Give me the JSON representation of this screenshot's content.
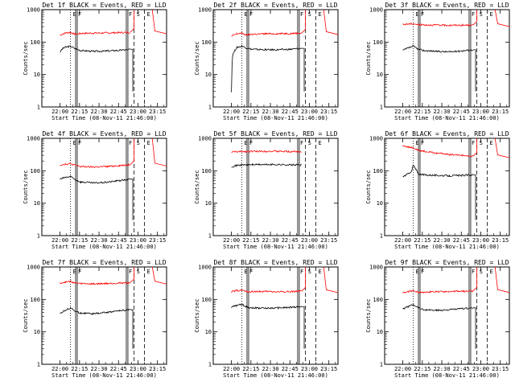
{
  "figure": {
    "xtick_labels": [
      "22:00",
      "22:15",
      "22:30",
      "22:45",
      "23:00",
      "23:15"
    ],
    "ytick_labels": [
      "1",
      "10",
      "100",
      "1000"
    ],
    "ylabel": "Counts/sec",
    "xlabel": "Start Time (08-Nov-11 21:46:00)",
    "colors": {
      "events": "#000000",
      "lld": "#ff0000"
    }
  },
  "chart_data": [
    {
      "type": "line",
      "title": "Det 1f BLACK = Events, RED = LLD",
      "ylim": [
        1,
        1000
      ],
      "yscale": "log",
      "xlim_min": [
        0,
        96
      ],
      "start_min": 14,
      "end_min": 79,
      "dip_at_min": 70,
      "dip_to": 3,
      "events": [
        [
          14,
          50
        ],
        [
          16,
          62
        ],
        [
          18,
          70
        ],
        [
          22,
          74
        ],
        [
          26,
          62
        ],
        [
          30,
          55
        ],
        [
          40,
          52
        ],
        [
          50,
          53
        ],
        [
          60,
          56
        ],
        [
          65,
          58
        ],
        [
          68,
          60
        ]
      ],
      "lld": [
        [
          14,
          165
        ],
        [
          18,
          190
        ],
        [
          22,
          200
        ],
        [
          25,
          175
        ],
        [
          30,
          185
        ],
        [
          40,
          190
        ],
        [
          50,
          192
        ],
        [
          60,
          196
        ],
        [
          68,
          200
        ]
      ],
      "markers": [
        {
          "min": 22,
          "label": "E"
        },
        {
          "min": 26,
          "label": "F"
        },
        {
          "min": 65,
          "label": "F"
        },
        {
          "min": 71,
          "label": "S"
        },
        {
          "min": 79,
          "label": "E"
        }
      ]
    },
    {
      "type": "line",
      "title": "Det 2f BLACK = Events, RED = LLD",
      "ylim": [
        1,
        1000
      ],
      "yscale": "log",
      "start_min": 14,
      "end_min": 79,
      "dip_at_min": 70,
      "dip_to": 3,
      "events": [
        [
          14,
          3
        ],
        [
          15,
          40
        ],
        [
          18,
          68
        ],
        [
          22,
          75
        ],
        [
          26,
          65
        ],
        [
          30,
          60
        ],
        [
          40,
          58
        ],
        [
          50,
          58
        ],
        [
          60,
          60
        ],
        [
          68,
          64
        ]
      ],
      "lld": [
        [
          14,
          150
        ],
        [
          18,
          180
        ],
        [
          22,
          190
        ],
        [
          25,
          165
        ],
        [
          30,
          175
        ],
        [
          40,
          180
        ],
        [
          50,
          182
        ],
        [
          60,
          185
        ],
        [
          68,
          190
        ]
      ],
      "markers": [
        {
          "min": 22,
          "label": "E"
        },
        {
          "min": 26,
          "label": "F"
        },
        {
          "min": 65,
          "label": "F"
        },
        {
          "min": 71,
          "label": "S"
        },
        {
          "min": 79,
          "label": "E"
        }
      ]
    },
    {
      "type": "line",
      "title": "Det 3f BLACK = Events, RED = LLD",
      "ylim": [
        1,
        1000
      ],
      "yscale": "log",
      "start_min": 14,
      "end_min": 79,
      "dip_at_min": 70,
      "dip_to": 3,
      "events": [
        [
          14,
          55
        ],
        [
          18,
          65
        ],
        [
          22,
          75
        ],
        [
          26,
          60
        ],
        [
          30,
          55
        ],
        [
          40,
          52
        ],
        [
          50,
          50
        ],
        [
          60,
          54
        ],
        [
          68,
          58
        ]
      ],
      "lld": [
        [
          14,
          350
        ],
        [
          18,
          360
        ],
        [
          22,
          370
        ],
        [
          26,
          345
        ],
        [
          30,
          340
        ],
        [
          40,
          335
        ],
        [
          50,
          330
        ],
        [
          60,
          332
        ],
        [
          68,
          335
        ]
      ],
      "markers": [
        {
          "min": 22,
          "label": "E"
        },
        {
          "min": 26,
          "label": "F"
        },
        {
          "min": 65,
          "label": "F"
        },
        {
          "min": 71,
          "label": "S"
        },
        {
          "min": 79,
          "label": "E"
        }
      ]
    },
    {
      "type": "line",
      "title": "Det 4f BLACK = Events, RED = LLD",
      "ylim": [
        1,
        1000
      ],
      "yscale": "log",
      "start_min": 14,
      "end_min": 79,
      "dip_at_min": 70,
      "dip_to": 3,
      "events": [
        [
          14,
          55
        ],
        [
          18,
          62
        ],
        [
          22,
          66
        ],
        [
          26,
          52
        ],
        [
          30,
          45
        ],
        [
          40,
          42
        ],
        [
          50,
          44
        ],
        [
          60,
          50
        ],
        [
          68,
          55
        ]
      ],
      "lld": [
        [
          14,
          150
        ],
        [
          18,
          160
        ],
        [
          22,
          165
        ],
        [
          26,
          145
        ],
        [
          30,
          135
        ],
        [
          40,
          130
        ],
        [
          50,
          135
        ],
        [
          60,
          145
        ],
        [
          68,
          155
        ]
      ],
      "markers": [
        {
          "min": 22,
          "label": "E"
        },
        {
          "min": 26,
          "label": "F"
        },
        {
          "min": 65,
          "label": "F"
        },
        {
          "min": 71,
          "label": "S"
        },
        {
          "min": 79,
          "label": "E"
        }
      ]
    },
    {
      "type": "line",
      "title": "Det 5f BLACK = Events, RED = LLD",
      "ylim": [
        1,
        1000
      ],
      "yscale": "log",
      "start_min": 14,
      "end_min": 79,
      "dip_at_min": null,
      "dip_to": null,
      "events": [
        [
          14,
          135
        ],
        [
          20,
          150
        ],
        [
          30,
          155
        ],
        [
          40,
          155
        ],
        [
          50,
          155
        ],
        [
          60,
          152
        ],
        [
          68,
          150
        ]
      ],
      "lld": [
        [
          14,
          380
        ],
        [
          20,
          390
        ],
        [
          30,
          395
        ],
        [
          40,
          400
        ],
        [
          50,
          395
        ],
        [
          60,
          390
        ],
        [
          68,
          395
        ]
      ],
      "markers": [
        {
          "min": 22,
          "label": "E"
        },
        {
          "min": 26,
          "label": "F"
        },
        {
          "min": 65,
          "label": "F"
        },
        {
          "min": 71,
          "label": "S"
        },
        {
          "min": 79,
          "label": "E"
        }
      ]
    },
    {
      "type": "line",
      "title": "Det 6f BLACK = Events, RED = LLD",
      "ylim": [
        1,
        1000
      ],
      "yscale": "log",
      "start_min": 14,
      "end_min": 79,
      "dip_at_min": 70,
      "dip_to": 3,
      "events": [
        [
          14,
          65
        ],
        [
          18,
          80
        ],
        [
          21,
          100
        ],
        [
          22,
          150
        ],
        [
          24,
          110
        ],
        [
          26,
          80
        ],
        [
          30,
          75
        ],
        [
          40,
          72
        ],
        [
          50,
          70
        ],
        [
          60,
          72
        ],
        [
          68,
          75
        ]
      ],
      "lld": [
        [
          14,
          600
        ],
        [
          18,
          550
        ],
        [
          22,
          500
        ],
        [
          26,
          420
        ],
        [
          30,
          400
        ],
        [
          40,
          350
        ],
        [
          50,
          320
        ],
        [
          60,
          300
        ],
        [
          68,
          280
        ]
      ],
      "markers": [
        {
          "min": 22,
          "label": "E"
        },
        {
          "min": 26,
          "label": "F"
        },
        {
          "min": 65,
          "label": "F"
        },
        {
          "min": 71,
          "label": "S"
        },
        {
          "min": 79,
          "label": "E"
        }
      ]
    },
    {
      "type": "line",
      "title": "Det 7f BLACK = Events, RED = LLD",
      "ylim": [
        1,
        1000
      ],
      "yscale": "log",
      "start_min": 14,
      "end_min": 79,
      "dip_at_min": 70,
      "dip_to": 3,
      "events": [
        [
          14,
          38
        ],
        [
          18,
          45
        ],
        [
          22,
          55
        ],
        [
          26,
          42
        ],
        [
          30,
          38
        ],
        [
          40,
          36
        ],
        [
          50,
          40
        ],
        [
          60,
          45
        ],
        [
          68,
          48
        ]
      ],
      "lld": [
        [
          14,
          320
        ],
        [
          18,
          340
        ],
        [
          22,
          360
        ],
        [
          26,
          320
        ],
        [
          30,
          310
        ],
        [
          40,
          300
        ],
        [
          50,
          310
        ],
        [
          60,
          320
        ],
        [
          68,
          330
        ]
      ],
      "markers": [
        {
          "min": 22,
          "label": "E"
        },
        {
          "min": 26,
          "label": "F"
        },
        {
          "min": 65,
          "label": "F"
        },
        {
          "min": 71,
          "label": "S"
        },
        {
          "min": 79,
          "label": "E"
        }
      ]
    },
    {
      "type": "line",
      "title": "Det 8f BLACK = Events, RED = LLD",
      "ylim": [
        1,
        1000
      ],
      "yscale": "log",
      "start_min": 14,
      "end_min": 79,
      "dip_at_min": 70,
      "dip_to": 3,
      "events": [
        [
          14,
          58
        ],
        [
          18,
          65
        ],
        [
          22,
          70
        ],
        [
          26,
          58
        ],
        [
          30,
          55
        ],
        [
          40,
          54
        ],
        [
          50,
          55
        ],
        [
          60,
          57
        ],
        [
          68,
          60
        ]
      ],
      "lld": [
        [
          14,
          170
        ],
        [
          18,
          185
        ],
        [
          22,
          195
        ],
        [
          26,
          170
        ],
        [
          30,
          175
        ],
        [
          40,
          175
        ],
        [
          50,
          172
        ],
        [
          60,
          175
        ],
        [
          68,
          180
        ]
      ],
      "markers": [
        {
          "min": 22,
          "label": "E"
        },
        {
          "min": 26,
          "label": "F"
        },
        {
          "min": 65,
          "label": "F"
        },
        {
          "min": 71,
          "label": "S"
        },
        {
          "min": 79,
          "label": "E"
        }
      ]
    },
    {
      "type": "line",
      "title": "Det 9f BLACK = Events, RED = LLD",
      "ylim": [
        1,
        1000
      ],
      "yscale": "log",
      "start_min": 14,
      "end_min": 79,
      "dip_at_min": 70,
      "dip_to": 3,
      "events": [
        [
          14,
          50
        ],
        [
          18,
          60
        ],
        [
          22,
          70
        ],
        [
          26,
          55
        ],
        [
          30,
          48
        ],
        [
          40,
          46
        ],
        [
          50,
          48
        ],
        [
          60,
          52
        ],
        [
          68,
          55
        ]
      ],
      "lld": [
        [
          14,
          160
        ],
        [
          18,
          175
        ],
        [
          22,
          185
        ],
        [
          26,
          165
        ],
        [
          30,
          170
        ],
        [
          40,
          172
        ],
        [
          50,
          175
        ],
        [
          60,
          178
        ],
        [
          68,
          182
        ]
      ],
      "markers": [
        {
          "min": 22,
          "label": "E"
        },
        {
          "min": 26,
          "label": "F"
        },
        {
          "min": 65,
          "label": "F"
        },
        {
          "min": 71,
          "label": "S"
        },
        {
          "min": 79,
          "label": "E"
        }
      ]
    }
  ]
}
